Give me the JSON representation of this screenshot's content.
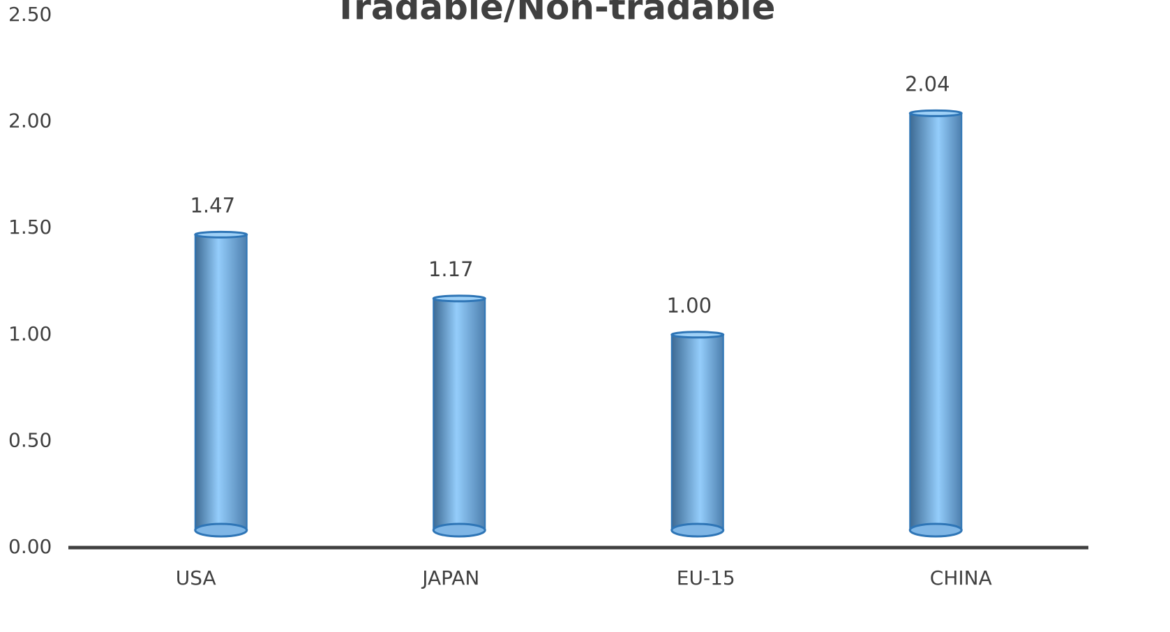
{
  "chart_data": {
    "type": "bar",
    "title": "Tradable/Non-tradable",
    "categories": [
      "USA",
      "JAPAN",
      "EU-15",
      "CHINA"
    ],
    "values": [
      1.47,
      1.17,
      1.0,
      2.04
    ],
    "value_labels": [
      "1.47",
      "1.17",
      "1.00",
      "2.04"
    ],
    "color": "#5b9bd5",
    "ylim": [
      0,
      2.5
    ],
    "yticks": [
      {
        "value": 0,
        "label": "0.00"
      },
      {
        "value": 0.5,
        "label": "0.50"
      },
      {
        "value": 1,
        "label": "1.00"
      },
      {
        "value": 1.5,
        "label": "1.50"
      },
      {
        "value": 2,
        "label": "2.00"
      },
      {
        "value": 2.5,
        "label": "2.50"
      }
    ],
    "grid": false
  }
}
